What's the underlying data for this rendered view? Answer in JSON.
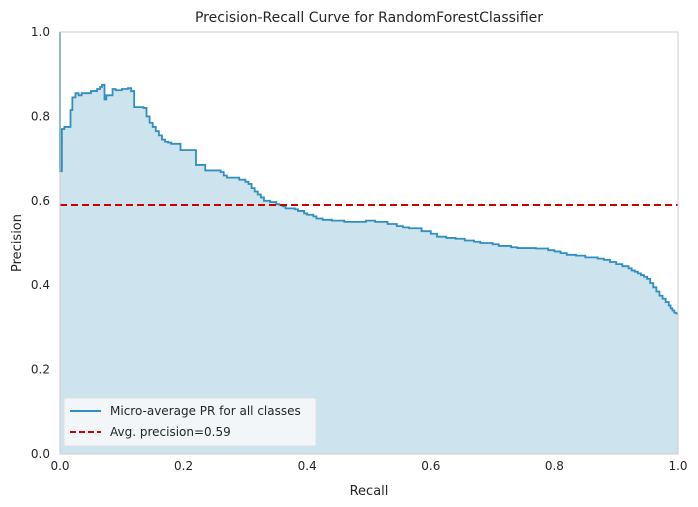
{
  "chart_data": {
    "type": "line",
    "title": "Precision-Recall Curve for RandomForestClassifier",
    "xlabel": "Recall",
    "ylabel": "Precision",
    "xlim": [
      0,
      1
    ],
    "ylim": [
      0,
      1
    ],
    "xticks": [
      "0.0",
      "0.2",
      "0.4",
      "0.6",
      "0.8",
      "1.0"
    ],
    "yticks": [
      "0.0",
      "0.2",
      "0.4",
      "0.6",
      "0.8",
      "1.0"
    ],
    "grid": false,
    "legend_position": "lower-left",
    "average_precision": 0.59,
    "series": [
      {
        "name": "Micro-average PR for all classes",
        "color": "#2f8fbf",
        "fill_color": "#cde3ed",
        "style": "step",
        "x": [
          0.0,
          0.0,
          0.003,
          0.007,
          0.01,
          0.017,
          0.02,
          0.025,
          0.03,
          0.035,
          0.05,
          0.06,
          0.065,
          0.068,
          0.072,
          0.075,
          0.085,
          0.09,
          0.1,
          0.11,
          0.115,
          0.12,
          0.125,
          0.13,
          0.135,
          0.14,
          0.145,
          0.15,
          0.155,
          0.16,
          0.165,
          0.17,
          0.175,
          0.18,
          0.185,
          0.195,
          0.22,
          0.235,
          0.26,
          0.265,
          0.27,
          0.28,
          0.29,
          0.3,
          0.305,
          0.31,
          0.315,
          0.32,
          0.325,
          0.33,
          0.34,
          0.35,
          0.355,
          0.36,
          0.365,
          0.375,
          0.38,
          0.385,
          0.395,
          0.4,
          0.41,
          0.415,
          0.425,
          0.44,
          0.46,
          0.48,
          0.495,
          0.5,
          0.51,
          0.53,
          0.545,
          0.555,
          0.565,
          0.585,
          0.6,
          0.61,
          0.625,
          0.64,
          0.655,
          0.67,
          0.68,
          0.7,
          0.71,
          0.73,
          0.74,
          0.77,
          0.79,
          0.8,
          0.81,
          0.82,
          0.835,
          0.85,
          0.87,
          0.88,
          0.89,
          0.9,
          0.91,
          0.92,
          0.925,
          0.93,
          0.935,
          0.94,
          0.945,
          0.95,
          0.955,
          0.96,
          0.965,
          0.97,
          0.975,
          0.98,
          0.985,
          0.988,
          0.991,
          0.994,
          0.997,
          1.0
        ],
        "y": [
          1.0,
          0.67,
          0.77,
          0.775,
          0.775,
          0.815,
          0.845,
          0.855,
          0.85,
          0.855,
          0.86,
          0.865,
          0.87,
          0.875,
          0.84,
          0.85,
          0.865,
          0.862,
          0.865,
          0.867,
          0.86,
          0.822,
          0.822,
          0.822,
          0.82,
          0.8,
          0.785,
          0.775,
          0.765,
          0.755,
          0.745,
          0.74,
          0.738,
          0.735,
          0.735,
          0.72,
          0.685,
          0.672,
          0.668,
          0.66,
          0.655,
          0.655,
          0.65,
          0.645,
          0.64,
          0.63,
          0.622,
          0.615,
          0.608,
          0.6,
          0.597,
          0.592,
          0.59,
          0.587,
          0.582,
          0.582,
          0.58,
          0.576,
          0.57,
          0.567,
          0.563,
          0.558,
          0.555,
          0.553,
          0.55,
          0.55,
          0.553,
          0.553,
          0.55,
          0.545,
          0.54,
          0.537,
          0.535,
          0.528,
          0.522,
          0.515,
          0.512,
          0.51,
          0.506,
          0.503,
          0.5,
          0.497,
          0.493,
          0.49,
          0.488,
          0.487,
          0.483,
          0.48,
          0.476,
          0.472,
          0.47,
          0.466,
          0.463,
          0.46,
          0.455,
          0.45,
          0.445,
          0.44,
          0.435,
          0.432,
          0.428,
          0.424,
          0.42,
          0.415,
          0.405,
          0.395,
          0.385,
          0.375,
          0.368,
          0.36,
          0.352,
          0.345,
          0.34,
          0.335,
          0.333,
          0.333
        ]
      },
      {
        "name": "Avg. precision=0.59",
        "color": "#cc0000",
        "style": "dashed",
        "x": [
          0,
          1
        ],
        "y": [
          0.59,
          0.59
        ]
      }
    ]
  }
}
